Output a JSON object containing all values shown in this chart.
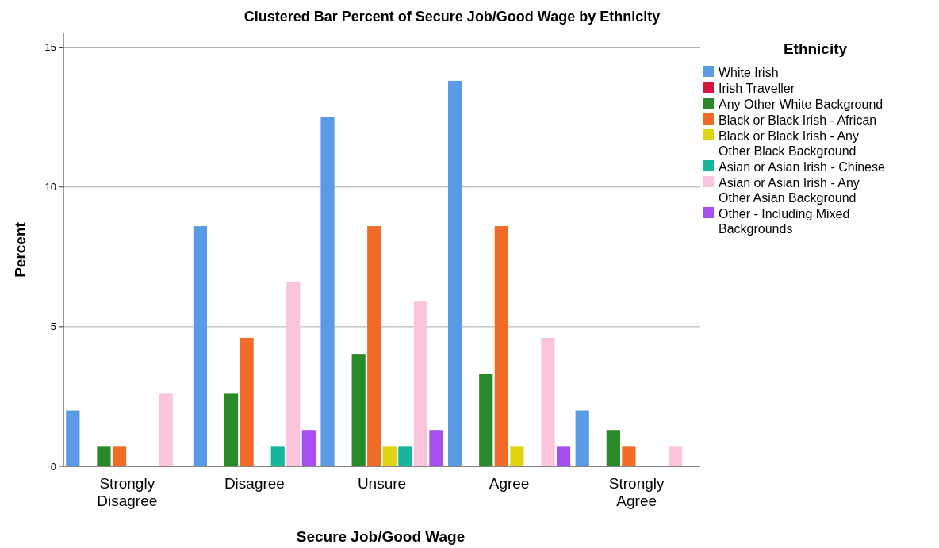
{
  "chart_data": {
    "type": "bar",
    "title": "Clustered Bar Percent of Secure Job/Good Wage by Ethnicity",
    "xlabel": "Secure Job/Good Wage",
    "ylabel": "Percent",
    "legend_title": "Ethnicity",
    "categories": [
      "Strongly Disagree",
      "Disagree",
      "Unsure",
      "Agree",
      "Strongly Agree"
    ],
    "series": [
      {
        "name": "White Irish",
        "color": "#5b9be6",
        "values": [
          2.0,
          8.6,
          12.5,
          13.8,
          2.0
        ]
      },
      {
        "name": "Irish Traveller",
        "color": "#d5163c",
        "values": [
          0,
          0,
          0,
          0,
          0
        ]
      },
      {
        "name": "Any Other White Background",
        "color": "#2a8a2a",
        "values": [
          0.7,
          2.6,
          4.0,
          3.3,
          1.3
        ]
      },
      {
        "name": "Black or Black Irish - African",
        "color": "#f06a28",
        "values": [
          0.7,
          4.6,
          8.6,
          8.6,
          0.7
        ]
      },
      {
        "name": "Black or Black Irish - Any Other Black Background",
        "color": "#e0d414",
        "values": [
          0,
          0,
          0.7,
          0.7,
          0
        ]
      },
      {
        "name": "Asian or Asian Irish - Chinese",
        "color": "#17b59c",
        "values": [
          0,
          0.7,
          0.7,
          0,
          0
        ]
      },
      {
        "name": "Asian or Asian Irish - Any Other Asian Background",
        "color": "#fbc4dd",
        "values": [
          2.6,
          6.6,
          5.9,
          4.6,
          0.7
        ]
      },
      {
        "name": "Other - Including Mixed Backgrounds",
        "color": "#a64ef0",
        "values": [
          0,
          1.3,
          1.3,
          0.7,
          0
        ]
      }
    ],
    "ylim": [
      0,
      15.5
    ],
    "yticks": [
      0,
      5,
      10,
      15
    ],
    "grid": "y",
    "legend": "right"
  }
}
